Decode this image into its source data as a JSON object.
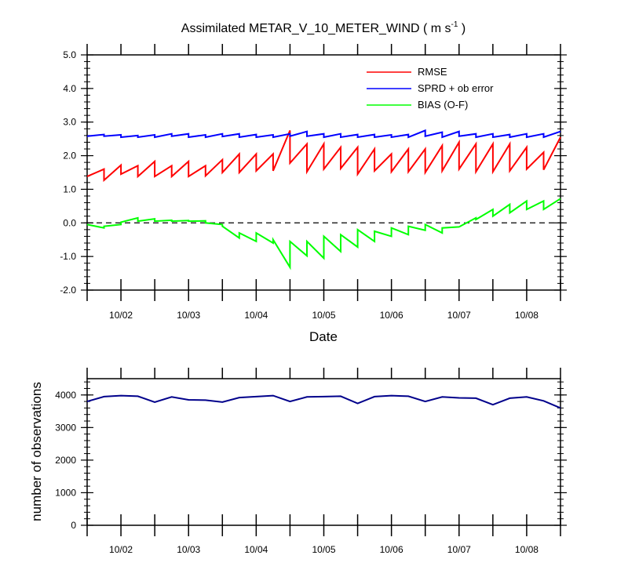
{
  "chart_data": [
    {
      "type": "line",
      "title": "Assimilated METAR_V_10_METER_WIND ( m s",
      "title_sup": "-1",
      "title_end": " )",
      "xlabel": "Date",
      "ylabel": "",
      "x_tick_labels": [
        "10/02",
        "10/03",
        "10/04",
        "10/05",
        "10/06",
        "10/07",
        "10/08"
      ],
      "ylim": [
        -2.0,
        5.0
      ],
      "y_tick_labels": [
        "-2.0",
        "-1.0",
        "0.0",
        "1.0",
        "2.0",
        "3.0",
        "4.0",
        "5.0"
      ],
      "reference_line": 0.0,
      "legend": [
        "RMSE",
        "SPRD + ob error",
        "BIAS (O-F)"
      ],
      "series": [
        {
          "name": "RMSE",
          "color": "#ff0000",
          "x": [
            0.0,
            0.5,
            0.5,
            1.0,
            1.0,
            1.5,
            1.5,
            2.0,
            2.0,
            2.5,
            2.5,
            3.0,
            3.0,
            3.5,
            3.5,
            4.0,
            4.0,
            4.5,
            4.5,
            5.0,
            5.0,
            5.5,
            5.5,
            6.0,
            6.0,
            6.5,
            6.5,
            7.0,
            7.0,
            7.5,
            7.5,
            8.0,
            8.0,
            8.5,
            8.5,
            9.0,
            9.0,
            9.5,
            9.5,
            10.0,
            10.0,
            10.5,
            10.5,
            11.0,
            11.0,
            11.5,
            11.5,
            12.0,
            12.0,
            12.5,
            12.5,
            13.0,
            13.0,
            13.5,
            13.5,
            14.0
          ],
          "y": [
            1.38,
            1.6,
            1.27,
            1.72,
            1.45,
            1.7,
            1.38,
            1.83,
            1.38,
            1.7,
            1.38,
            1.83,
            1.38,
            1.7,
            1.4,
            1.88,
            1.5,
            2.05,
            1.5,
            2.05,
            1.55,
            2.05,
            1.55,
            2.75,
            1.78,
            2.35,
            1.52,
            2.35,
            1.6,
            2.25,
            1.62,
            2.25,
            1.45,
            2.2,
            1.55,
            2.05,
            1.52,
            2.2,
            1.52,
            2.2,
            1.5,
            2.3,
            1.55,
            2.4,
            1.6,
            2.35,
            1.52,
            2.35,
            1.52,
            2.35,
            1.55,
            2.25,
            1.6,
            2.1,
            1.58,
            2.55
          ]
        },
        {
          "name": "SPRD + ob error",
          "color": "#0000ff",
          "x": [
            0.0,
            0.5,
            0.5,
            1.0,
            1.0,
            1.5,
            1.5,
            2.0,
            2.0,
            2.5,
            2.5,
            3.0,
            3.0,
            3.5,
            3.5,
            4.0,
            4.0,
            4.5,
            4.5,
            5.0,
            5.0,
            5.5,
            5.5,
            6.0,
            6.0,
            6.5,
            6.5,
            7.0,
            7.0,
            7.5,
            7.5,
            8.0,
            8.0,
            8.5,
            8.5,
            9.0,
            9.0,
            9.5,
            9.5,
            10.0,
            10.0,
            10.5,
            10.5,
            11.0,
            11.0,
            11.5,
            11.5,
            12.0,
            12.0,
            12.5,
            12.5,
            13.0,
            13.0,
            13.5,
            13.5,
            14.0
          ],
          "y": [
            2.58,
            2.63,
            2.58,
            2.62,
            2.55,
            2.6,
            2.55,
            2.62,
            2.55,
            2.65,
            2.58,
            2.65,
            2.55,
            2.62,
            2.55,
            2.65,
            2.57,
            2.65,
            2.55,
            2.63,
            2.55,
            2.62,
            2.55,
            2.65,
            2.58,
            2.72,
            2.58,
            2.65,
            2.55,
            2.65,
            2.55,
            2.63,
            2.55,
            2.63,
            2.55,
            2.62,
            2.55,
            2.63,
            2.55,
            2.75,
            2.58,
            2.7,
            2.55,
            2.72,
            2.58,
            2.65,
            2.55,
            2.65,
            2.55,
            2.63,
            2.55,
            2.65,
            2.55,
            2.65,
            2.55,
            2.72
          ]
        },
        {
          "name": "BIAS (O-F)",
          "color": "#00ff00",
          "x": [
            0.0,
            0.5,
            0.5,
            1.0,
            1.0,
            1.5,
            1.5,
            2.0,
            2.0,
            2.5,
            2.5,
            3.0,
            3.0,
            3.5,
            3.5,
            4.0,
            4.0,
            4.5,
            4.5,
            5.0,
            5.0,
            5.5,
            5.5,
            6.0,
            6.0,
            6.5,
            6.5,
            7.0,
            7.0,
            7.5,
            7.5,
            8.0,
            8.0,
            8.5,
            8.5,
            9.0,
            9.0,
            9.5,
            9.5,
            10.0,
            10.0,
            10.5,
            10.5,
            11.0,
            11.0,
            11.5,
            11.5,
            12.0,
            12.0,
            12.5,
            12.5,
            13.0,
            13.0,
            13.5,
            13.5,
            14.0
          ],
          "y": [
            -0.05,
            -0.15,
            -0.1,
            -0.05,
            0.02,
            0.15,
            0.05,
            0.12,
            0.05,
            0.08,
            0.05,
            0.07,
            0.05,
            0.06,
            0.0,
            -0.05,
            -0.1,
            -0.45,
            -0.3,
            -0.55,
            -0.3,
            -0.6,
            -0.5,
            -1.32,
            -0.55,
            -0.98,
            -0.55,
            -1.05,
            -0.4,
            -0.85,
            -0.35,
            -0.72,
            -0.2,
            -0.55,
            -0.25,
            -0.4,
            -0.15,
            -0.35,
            -0.1,
            -0.22,
            -0.05,
            -0.3,
            -0.15,
            -0.12,
            -0.12,
            0.15,
            0.1,
            0.4,
            0.2,
            0.55,
            0.3,
            0.65,
            0.4,
            0.65,
            0.4,
            0.72
          ]
        }
      ]
    },
    {
      "type": "line",
      "title": "",
      "xlabel": "",
      "ylabel": "number of observations",
      "x_tick_labels": [
        "10/02",
        "10/03",
        "10/04",
        "10/05",
        "10/06",
        "10/07",
        "10/08"
      ],
      "ylim": [
        0,
        4500
      ],
      "y_tick_labels": [
        "0",
        "1000",
        "2000",
        "3000",
        "4000"
      ],
      "series": [
        {
          "name": "number of observations",
          "color": "#00008b",
          "x": [
            0.0,
            0.5,
            1.0,
            1.5,
            2.0,
            2.5,
            3.0,
            3.5,
            4.0,
            4.5,
            5.0,
            5.5,
            6.0,
            6.5,
            7.0,
            7.5,
            8.0,
            8.5,
            9.0,
            9.5,
            10.0,
            10.5,
            11.0,
            11.5,
            12.0,
            12.5,
            13.0,
            13.5,
            14.0
          ],
          "y": [
            3800,
            3950,
            3980,
            3960,
            3780,
            3940,
            3850,
            3840,
            3780,
            3920,
            3950,
            3980,
            3800,
            3940,
            3950,
            3960,
            3740,
            3950,
            3980,
            3960,
            3800,
            3940,
            3910,
            3900,
            3700,
            3900,
            3940,
            3820,
            3600
          ]
        }
      ]
    }
  ]
}
